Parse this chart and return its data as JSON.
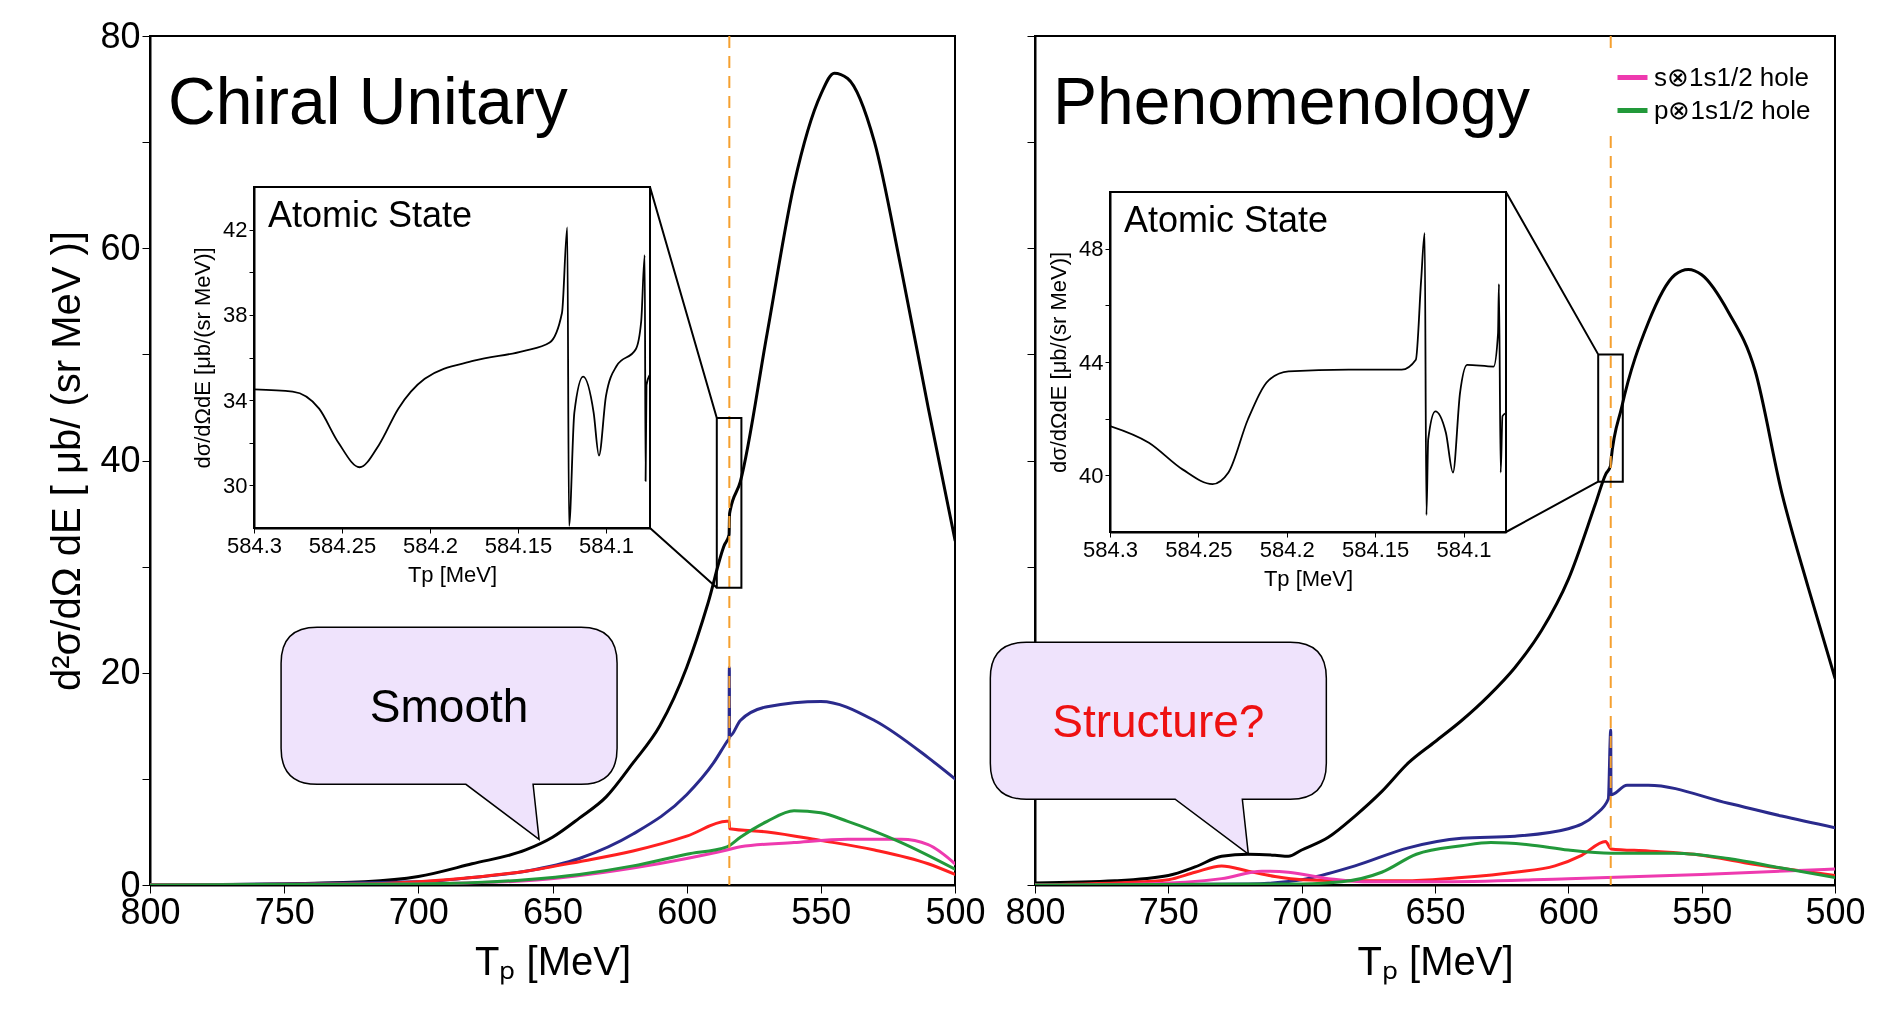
{
  "chart_data": [
    {
      "type": "line",
      "title": "Chiral Unitary",
      "xlabel": "Tₚ [MeV]",
      "ylabel": "d²σ/dΩ dE [ μb/ (sr MeV )]",
      "xlim": [
        800,
        500
      ],
      "ylim": [
        0,
        80
      ],
      "xticks": [
        800,
        750,
        700,
        650,
        600,
        550,
        500
      ],
      "yticks": [
        0,
        {
          "value": 10,
          "label": null
        },
        20,
        {
          "value": 30,
          "label": null
        },
        40,
        {
          "value": 50,
          "label": null
        },
        60,
        {
          "value": 70,
          "label": null
        },
        80
      ],
      "series": [
        {
          "color": "#000000",
          "x": [
            800,
            750,
            720,
            700,
            680,
            660,
            650,
            640,
            630,
            620,
            610,
            600,
            592,
            586,
            584.2,
            584,
            580,
            570,
            560,
            550,
            545,
            540,
            530,
            520,
            510,
            500
          ],
          "values": [
            0,
            0.1,
            0.3,
            0.8,
            2,
            3.3,
            4.5,
            6.3,
            8.3,
            11.5,
            15,
            20.5,
            26.6,
            32,
            33,
            35,
            38,
            52,
            66,
            74.5,
            76.5,
            76,
            70,
            58,
            45,
            32.5
          ]
        },
        {
          "color": "#2a2a8c",
          "x": [
            800,
            700,
            680,
            660,
            640,
            620,
            600,
            590,
            585,
            584.2,
            584.1,
            584,
            580,
            570,
            550,
            530,
            510,
            500
          ],
          "values": [
            0,
            0.3,
            0.7,
            1.3,
            2.5,
            4.8,
            8.5,
            11.5,
            13.5,
            13.8,
            20.5,
            14,
            15.5,
            16.8,
            17.3,
            15.5,
            12,
            10
          ]
        },
        {
          "color": "#ff2020",
          "x": [
            800,
            720,
            700,
            680,
            660,
            640,
            620,
            600,
            585,
            584.1,
            584,
            570,
            550,
            530,
            510,
            500
          ],
          "values": [
            0,
            0.1,
            0.3,
            0.7,
            1.3,
            2.2,
            3.2,
            4.6,
            6,
            6,
            5.3,
            5,
            4.2,
            3.3,
            2,
            1
          ]
        },
        {
          "color": "#ee3aaf",
          "x": [
            800,
            700,
            660,
            620,
            600,
            585,
            580,
            560,
            540,
            520,
            510,
            500
          ],
          "values": [
            0,
            0.1,
            0.4,
            1.6,
            2.5,
            3.3,
            3.6,
            4,
            4.3,
            4.3,
            3.8,
            2
          ]
        },
        {
          "color": "#22993a",
          "x": [
            800,
            700,
            660,
            640,
            620,
            600,
            585,
            580,
            570,
            560,
            550,
            540,
            520,
            500
          ],
          "values": [
            0,
            0.1,
            0.5,
            1,
            1.8,
            2.9,
            3.6,
            4.5,
            6,
            7,
            6.8,
            6,
            4,
            1.5
          ]
        }
      ],
      "ref_lines": [
        {
          "axis": "x",
          "value": 584.1,
          "color": "#f5a030",
          "line_style": "dashed"
        }
      ],
      "annotations": [
        {
          "text": "Smooth",
          "x": 655,
          "y": 4.3
        }
      ]
    },
    {
      "type": "line",
      "title": "Atomic State",
      "xlabel": "Tp [MeV]",
      "ylabel": "dσ/dΩdE [μb/(sr MeV)]",
      "xlim": [
        584.3,
        584.075
      ],
      "ylim": [
        28,
        44
      ],
      "xticks": [
        584.3,
        584.25,
        584.2,
        584.15,
        584.1
      ],
      "yticks": [
        30,
        {
          "value": 32,
          "label": null
        },
        34,
        {
          "value": 36,
          "label": null
        },
        38,
        {
          "value": 40,
          "label": null
        },
        42
      ],
      "series": [
        {
          "color": "#000000",
          "x": [
            584.3,
            584.278,
            584.263,
            584.252,
            584.24,
            584.229,
            584.218,
            584.203,
            584.175,
            584.147,
            584.132,
            584.125,
            584.122,
            584.121,
            584.118,
            584.113,
            584.107,
            584.104,
            584.1,
            584.094,
            584.083,
            584.08,
            584.078,
            584.0775,
            584.077,
            584.075
          ],
          "values": [
            34.5,
            34.4,
            33.6,
            32,
            30.85,
            31.9,
            33.6,
            35,
            35.85,
            36.3,
            36.7,
            38.1,
            42.1,
            28.1,
            33.4,
            35.1,
            33.4,
            31.4,
            34.2,
            35.6,
            36.4,
            37.7,
            40.8,
            30.2,
            34.7,
            35.2
          ]
        }
      ]
    },
    {
      "type": "line",
      "title": "Phenomenology",
      "xlabel": "Tₚ [MeV]",
      "xlim": [
        800,
        500
      ],
      "ylim": [
        0,
        80
      ],
      "xticks": [
        800,
        750,
        700,
        650,
        600,
        550,
        500
      ],
      "yticks": [
        0,
        {
          "value": 10,
          "label": null
        },
        20,
        {
          "value": 30,
          "label": null
        },
        40,
        {
          "value": 50,
          "label": null
        },
        60,
        {
          "value": 70,
          "label": null
        },
        80
      ],
      "tick_labels": "x",
      "legend": "top right",
      "series": [
        {
          "color": "#000000",
          "x": [
            800,
            770,
            750,
            740,
            730,
            720,
            710,
            705,
            700,
            690,
            680,
            670,
            660,
            650,
            640,
            630,
            620,
            610,
            600,
            590,
            586,
            584.2,
            584,
            580,
            570,
            560,
            555,
            550,
            540,
            530,
            520,
            510,
            500
          ],
          "values": [
            0.2,
            0.4,
            0.9,
            1.7,
            2.7,
            2.9,
            2.8,
            2.7,
            3.3,
            4.5,
            6.5,
            8.8,
            11.5,
            13.5,
            15.5,
            17.8,
            20.5,
            24,
            28.8,
            35.8,
            38.7,
            39.5,
            40,
            45,
            53,
            57.5,
            58,
            57.5,
            54,
            48.5,
            37,
            28,
            19.5
          ]
        },
        {
          "color": "#2a2a8c",
          "x": [
            800,
            720,
            700,
            680,
            660,
            640,
            620,
            600,
            590,
            585,
            584.1,
            584,
            578,
            570,
            540,
            520,
            500
          ],
          "values": [
            0,
            0.1,
            0.5,
            1.8,
            3.5,
            4.4,
            4.6,
            5.3,
            6.6,
            8.1,
            14.6,
            8.5,
            9.4,
            9.4,
            7.7,
            6.5,
            5.4
          ]
        },
        {
          "color": "#ff2020",
          "x": [
            800,
            760,
            750,
            740,
            730,
            720,
            710,
            700,
            680,
            660,
            640,
            620,
            605,
            595,
            586,
            584,
            570,
            550,
            534,
            500
          ],
          "values": [
            0,
            0.3,
            0.5,
            1.2,
            1.8,
            1.3,
            0.8,
            0.5,
            0.4,
            0.4,
            0.7,
            1.2,
            1.8,
            2.8,
            4.1,
            3.4,
            3.2,
            2.8,
            2.1,
            0.9
          ]
        },
        {
          "name": "s⊗1s1/2 hole",
          "color": "#ee3aaf",
          "x": [
            800,
            760,
            730,
            715,
            705,
            690,
            677,
            650,
            600,
            550,
            500
          ],
          "values": [
            0,
            0.1,
            0.6,
            1.3,
            1.2,
            0.6,
            0.3,
            0.3,
            0.6,
            1,
            1.5
          ]
        },
        {
          "name": "p⊗1s1/2 hole",
          "color": "#22993a",
          "x": [
            800,
            700,
            685,
            670,
            657,
            640,
            629,
            615,
            600,
            584,
            560,
            540,
            520,
            500
          ],
          "values": [
            0,
            0.1,
            0.3,
            1.2,
            2.9,
            3.7,
            4,
            3.8,
            3.3,
            3,
            3,
            2.5,
            1.6,
            0.7
          ]
        }
      ],
      "ref_lines": [
        {
          "axis": "x",
          "value": 584.1,
          "color": "#f5a030",
          "line_style": "dashed"
        }
      ],
      "annotations": [
        {
          "text": "Structure?",
          "x": 720,
          "y": 2.9
        }
      ]
    },
    {
      "type": "line",
      "title": "Atomic State",
      "xlabel": "Tp [MeV]",
      "ylabel": "dσ/dΩdE [μb/(sr MeV)]",
      "xlim": [
        584.3,
        584.076
      ],
      "ylim": [
        38,
        50
      ],
      "xticks": [
        584.3,
        584.25,
        584.2,
        584.15,
        584.1
      ],
      "yticks": [
        40,
        {
          "value": 42,
          "label": null
        },
        44,
        {
          "value": 46,
          "label": null
        },
        48
      ],
      "series": [
        {
          "color": "#000000",
          "x": [
            584.3,
            584.278,
            584.259,
            584.242,
            584.233,
            584.222,
            584.21,
            584.199,
            584.165,
            584.135,
            584.127,
            584.124,
            584.122,
            584.121,
            584.12,
            584.116,
            584.11,
            584.106,
            584.102,
            584.098,
            584.083,
            584.0805,
            584.08,
            584.079,
            584.078,
            584.076
          ],
          "values": [
            41.74,
            41.15,
            40.21,
            39.69,
            40.1,
            41.97,
            43.37,
            43.67,
            43.73,
            43.73,
            44.08,
            46.89,
            48.55,
            38.6,
            41.27,
            42.26,
            41.5,
            40.1,
            42.91,
            43.9,
            43.84,
            45.01,
            46.75,
            40.1,
            42.09,
            42.2
          ]
        }
      ]
    }
  ]
}
